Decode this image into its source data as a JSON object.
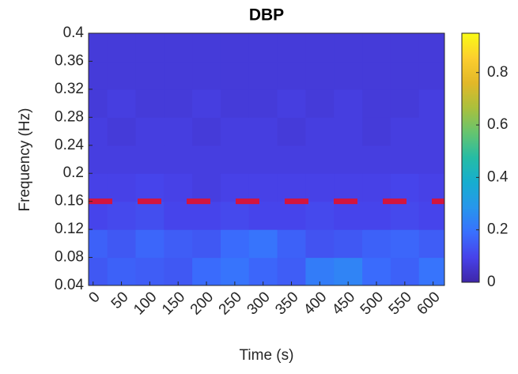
{
  "chart_data": {
    "type": "heatmap",
    "title": "DBP",
    "x_label": "Time (s)",
    "y_label": "Frequency (Hz)",
    "x": [
      0,
      50,
      100,
      150,
      200,
      250,
      300,
      350,
      400,
      450,
      500,
      550,
      600
    ],
    "y": [
      0.06,
      0.1,
      0.14,
      0.18,
      0.22,
      0.26,
      0.3,
      0.34,
      0.38
    ],
    "z": [
      [
        0.14,
        0.16,
        0.15,
        0.14,
        0.18,
        0.2,
        0.17,
        0.15,
        0.22,
        0.24,
        0.18,
        0.16,
        0.2
      ],
      [
        0.16,
        0.14,
        0.17,
        0.15,
        0.14,
        0.18,
        0.2,
        0.16,
        0.13,
        0.14,
        0.16,
        0.17,
        0.15
      ],
      [
        0.1,
        0.11,
        0.12,
        0.1,
        0.1,
        0.11,
        0.1,
        0.1,
        0.11,
        0.1,
        0.1,
        0.11,
        0.1
      ],
      [
        0.09,
        0.09,
        0.1,
        0.09,
        0.08,
        0.09,
        0.09,
        0.09,
        0.09,
        0.09,
        0.09,
        0.1,
        0.09
      ],
      [
        0.08,
        0.08,
        0.08,
        0.08,
        0.08,
        0.08,
        0.08,
        0.08,
        0.08,
        0.08,
        0.08,
        0.08,
        0.08
      ],
      [
        0.08,
        0.07,
        0.08,
        0.08,
        0.07,
        0.08,
        0.08,
        0.07,
        0.08,
        0.08,
        0.07,
        0.08,
        0.08
      ],
      [
        0.07,
        0.08,
        0.07,
        0.07,
        0.08,
        0.07,
        0.07,
        0.08,
        0.07,
        0.08,
        0.07,
        0.07,
        0.08
      ],
      [
        0.07,
        0.07,
        0.07,
        0.07,
        0.07,
        0.07,
        0.07,
        0.07,
        0.07,
        0.07,
        0.07,
        0.07,
        0.07
      ],
      [
        0.07,
        0.07,
        0.07,
        0.07,
        0.07,
        0.07,
        0.07,
        0.07,
        0.07,
        0.07,
        0.07,
        0.07,
        0.07
      ]
    ],
    "xlim": [
      -8,
      620
    ],
    "ylim": [
      0.04,
      0.4
    ],
    "xticks": [
      0,
      50,
      100,
      150,
      200,
      250,
      300,
      350,
      400,
      450,
      500,
      550,
      600
    ],
    "yticks": [
      0.04,
      0.08,
      0.12,
      0.16,
      0.2,
      0.24,
      0.28,
      0.32,
      0.36,
      0.4
    ],
    "clim": [
      0,
      0.95
    ],
    "cticks": [
      0,
      0.2,
      0.4,
      0.6,
      0.8
    ],
    "colormap": "parula",
    "reference_line": {
      "y": 0.16,
      "color": "#d2153f"
    }
  }
}
